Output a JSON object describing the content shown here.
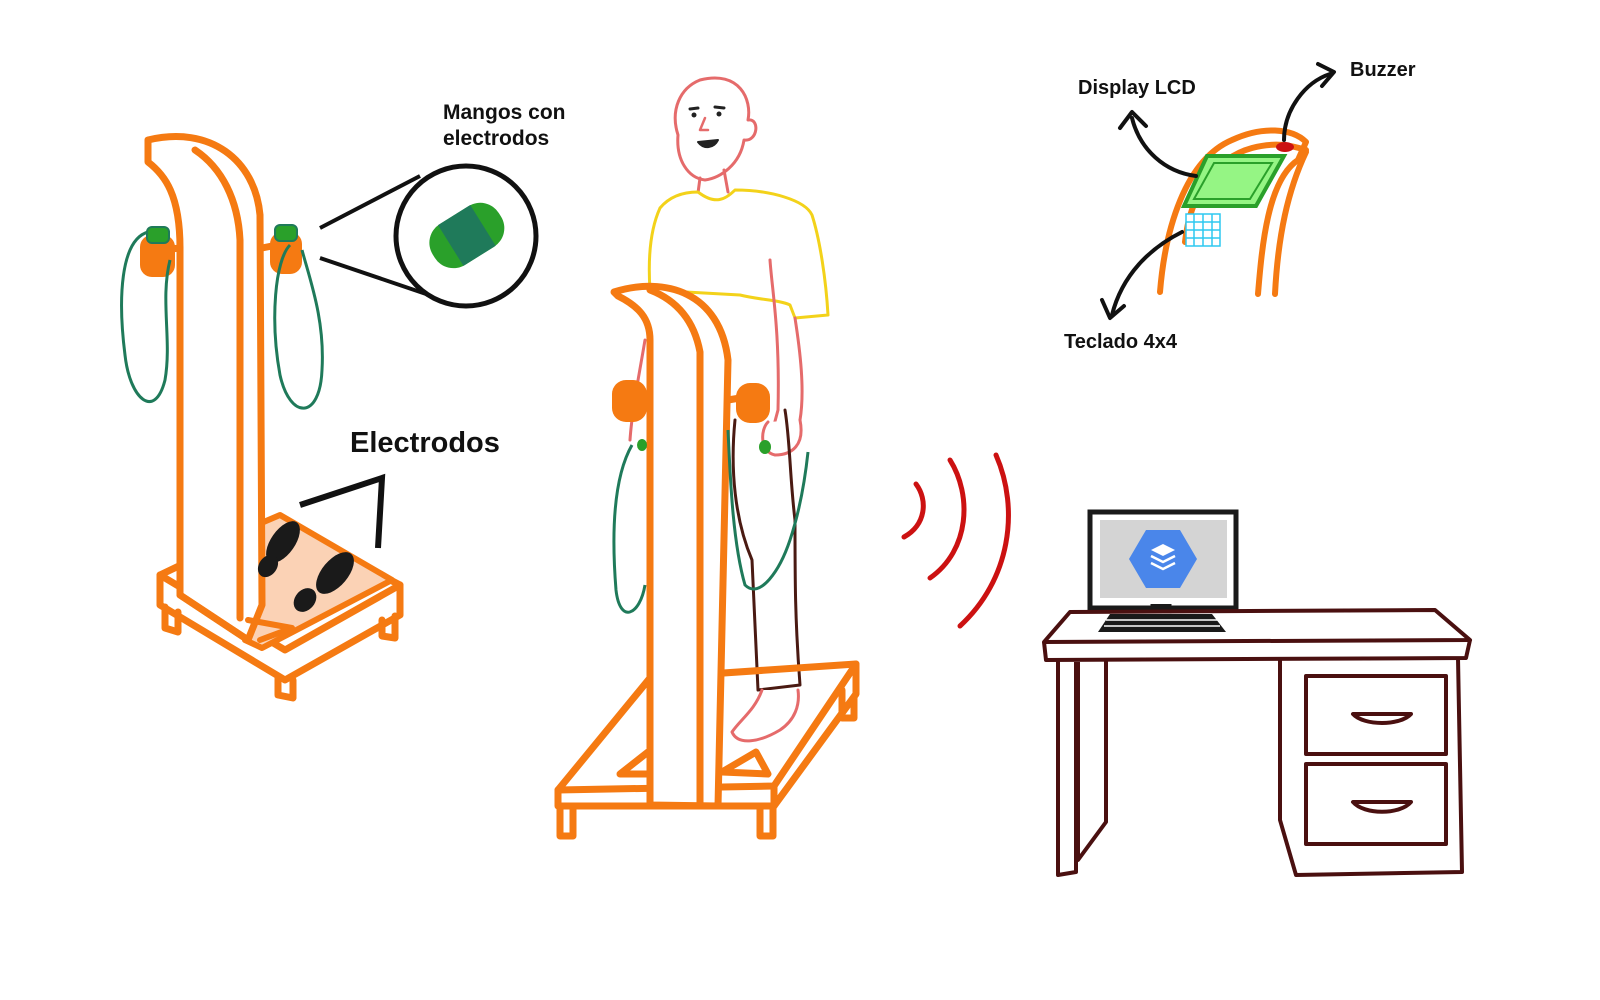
{
  "labels": {
    "handles": "Mangos con\nelectrodos",
    "electrodes": "Electrodos",
    "display": "Display LCD",
    "buzzer": "Buzzer",
    "keypad": "Teclado 4x4"
  },
  "colors": {
    "machine": "#f57a12",
    "platform": "#fbd2b5",
    "cable": "#1f7a5a",
    "electrode": "#2aa02a",
    "person_outline": "#e56b6b",
    "shirt": "#f3d21a",
    "pants": "#4a1a12",
    "signal": "#cc1111",
    "desk": "#4a1010",
    "lcd": "#95f584",
    "keypad": "#2ec8f0",
    "db_icon": "#4a86ea"
  },
  "icons": [
    "database-icon",
    "wifi-signal-icon"
  ]
}
